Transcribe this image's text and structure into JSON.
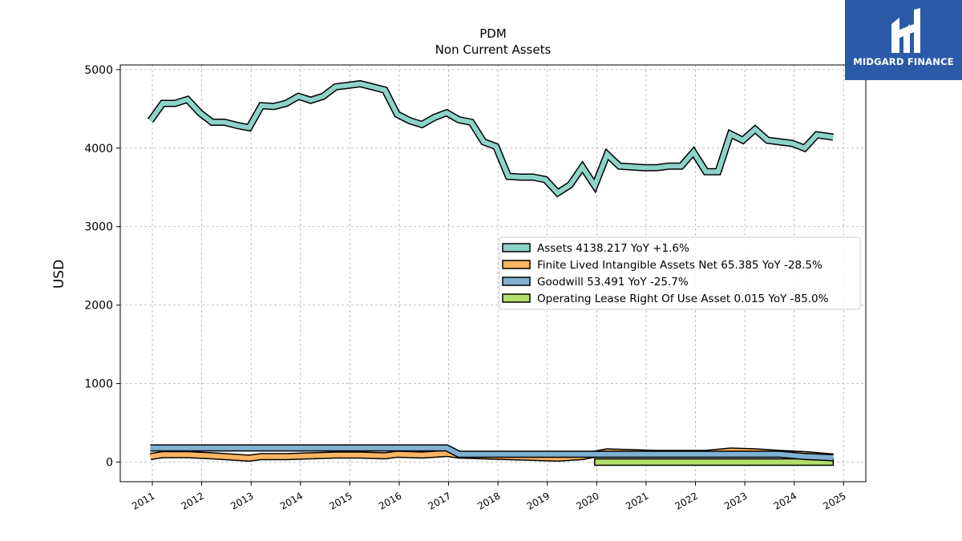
{
  "chart_data": {
    "type": "line",
    "title": "PDM",
    "subtitle": "Non Current  Assets",
    "ylabel": "USD",
    "xlabel": "",
    "ylim": [
      -250,
      5060
    ],
    "xlim": [
      2010.35,
      2025.45
    ],
    "yticks": [
      0,
      1000,
      2000,
      3000,
      4000,
      5000
    ],
    "xticks": [
      2011,
      2012,
      2013,
      2014,
      2015,
      2016,
      2017,
      2018,
      2019,
      2020,
      2021,
      2022,
      2023,
      2024,
      2025
    ],
    "grid": true,
    "legend_position": "center-right",
    "series": [
      {
        "name": "Assets  4138.217 YoY +1.6%",
        "color": "#8dd3c7",
        "x": [
          2010.96,
          2011.21,
          2011.46,
          2011.71,
          2011.96,
          2012.21,
          2012.46,
          2012.71,
          2012.96,
          2013.21,
          2013.46,
          2013.71,
          2013.96,
          2014.21,
          2014.46,
          2014.71,
          2014.96,
          2015.21,
          2015.46,
          2015.71,
          2015.96,
          2016.21,
          2016.46,
          2016.71,
          2016.96,
          2017.21,
          2017.46,
          2017.71,
          2017.96,
          2018.21,
          2018.46,
          2018.71,
          2018.96,
          2019.21,
          2019.46,
          2019.71,
          2019.96,
          2020.21,
          2020.46,
          2020.71,
          2020.96,
          2021.21,
          2021.46,
          2021.71,
          2021.96,
          2022.21,
          2022.46,
          2022.71,
          2022.96,
          2023.21,
          2023.46,
          2023.71,
          2023.96,
          2024.21,
          2024.46,
          2024.79
        ],
        "values": [
          4350,
          4570,
          4570,
          4620,
          4450,
          4330,
          4330,
          4290,
          4260,
          4540,
          4530,
          4570,
          4660,
          4610,
          4660,
          4780,
          4800,
          4820,
          4780,
          4740,
          4430,
          4350,
          4300,
          4390,
          4450,
          4360,
          4330,
          4080,
          4020,
          3640,
          3630,
          3630,
          3600,
          3430,
          3530,
          3760,
          3520,
          3920,
          3770,
          3760,
          3750,
          3750,
          3770,
          3770,
          3950,
          3700,
          3700,
          4180,
          4100,
          4240,
          4100,
          4080,
          4060,
          4000,
          4170,
          4140
        ]
      },
      {
        "name": "Finite Lived Intangible Assets Net  65.385 YoY -28.5%",
        "color": "#fdb462",
        "x": [
          2010.96,
          2011.21,
          2011.71,
          2012.21,
          2012.71,
          2012.96,
          2013.21,
          2013.71,
          2014.21,
          2014.71,
          2015.21,
          2015.71,
          2015.96,
          2016.46,
          2016.71,
          2016.96,
          2017.21,
          2017.71,
          2018.21,
          2018.71,
          2019.21,
          2019.71,
          2019.96,
          2020.21,
          2020.71,
          2021.21,
          2021.71,
          2022.21,
          2022.71,
          2023.21,
          2023.71,
          2024.21,
          2024.79
        ],
        "values": [
          70,
          95,
          95,
          80,
          60,
          50,
          70,
          70,
          80,
          90,
          90,
          80,
          100,
          90,
          100,
          110,
          90,
          80,
          70,
          60,
          50,
          70,
          100,
          130,
          120,
          110,
          110,
          110,
          140,
          130,
          110,
          95,
          65
        ]
      },
      {
        "name": "Goodwill  53.491 YoY -25.7%",
        "color": "#80b1d3",
        "x": [
          2010.96,
          2016.96,
          2017.21,
          2023.71,
          2024.21,
          2024.79
        ],
        "values": [
          180,
          180,
          100,
          100,
          72,
          55
        ]
      },
      {
        "name": "Operating Lease Right Of Use Asset  0.015 YoY -85.0%",
        "color": "#b3de69",
        "x": [
          2019.96,
          2024.79
        ],
        "values": [
          0.1,
          0.015
        ]
      }
    ]
  },
  "logo": {
    "text": "MIDGARD FINANCE"
  }
}
